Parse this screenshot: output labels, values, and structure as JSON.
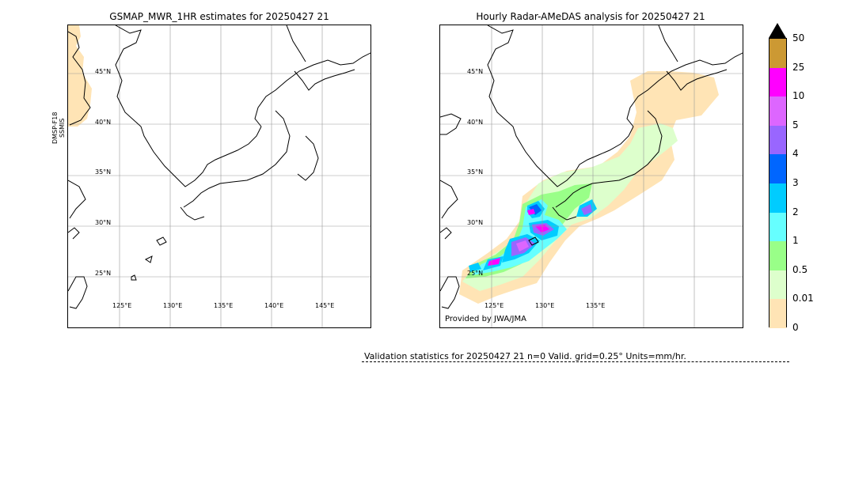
{
  "left_panel": {
    "title": "GSMAP_MWR_1HR estimates for 20250427 21",
    "satellite_label_line1": "DMSP-F18",
    "satellite_label_line2": "SSMIS"
  },
  "right_panel": {
    "title": "Hourly Radar-AMeDAS analysis for 20250427 21",
    "credit": "Provided by JWA/JMA"
  },
  "map": {
    "lat_labels": [
      "45°N",
      "40°N",
      "35°N",
      "30°N",
      "25°N"
    ],
    "lon_labels": [
      "125°E",
      "130°E",
      "135°E",
      "140°E",
      "145°E"
    ],
    "lon_labels_right": [
      "125°E",
      "130°E",
      "135°E"
    ]
  },
  "colorbar": {
    "levels": [
      "50",
      "25",
      "10",
      "5",
      "4",
      "3",
      "2",
      "1",
      "0.5",
      "0.01",
      "0"
    ],
    "colors": [
      "#cc9933",
      "#ff00ff",
      "#dd66ff",
      "#9966ff",
      "#0066ff",
      "#00ccff",
      "#66ffff",
      "#99ff88",
      "#ddffcc",
      "#ffe4b5"
    ],
    "overflow_color": "#000000",
    "units_note": "mm/hr"
  },
  "validation": {
    "text": "Validation statistics for 20250427 21  n=0 Valid. grid=0.25° Units=mm/hr."
  },
  "rain_colors": {
    "light": "#ffe4b5",
    "very_light_green": "#ddffcc",
    "green": "#99ff88",
    "cyan": "#66ffff",
    "sky": "#00ccff",
    "blue": "#0066ff",
    "purple": "#9966ff",
    "violet": "#dd66ff",
    "magenta": "#ff00ff"
  }
}
